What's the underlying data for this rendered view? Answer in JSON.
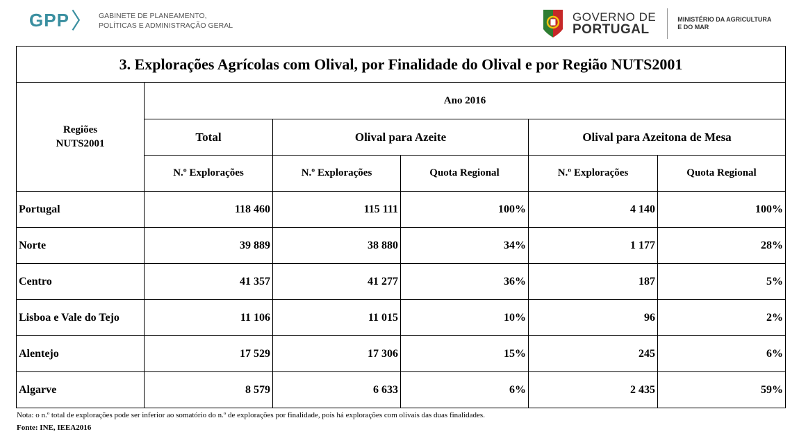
{
  "header": {
    "gpp_logo": "GPP",
    "gpp_line1": "GABINETE DE PLANEAMENTO,",
    "gpp_line2": "POLÍTICAS E ADMINISTRAÇÃO GERAL",
    "gov_line1": "GOVERNO DE",
    "gov_line2": "PORTUGAL",
    "ministry_line1": "MINISTÉRIO DA AGRICULTURA",
    "ministry_line2": "E DO MAR"
  },
  "table": {
    "title": "3. Explorações Agrícolas com Olival, por Finalidade do Olival e por Região NUTS2001",
    "region_header_line1": "Regiões",
    "region_header_line2": "NUTS2001",
    "year_header": "Ano 2016",
    "group_total": "Total",
    "group_azeite": "Olival para Azeite",
    "group_mesa": "Olival para Azeitona de Mesa",
    "sub_total_expl": "N.º Explorações",
    "sub_azeite_expl": "N.º Explorações",
    "sub_azeite_quota": "Quota Regional",
    "sub_mesa_expl": "N.º Explorações",
    "sub_mesa_quota": "Quota Regional",
    "rows": [
      {
        "region": "Portugal",
        "total": "118 460",
        "azeite_expl": "115 111",
        "azeite_quota": "100%",
        "mesa_expl": "4 140",
        "mesa_quota": "100%"
      },
      {
        "region": "Norte",
        "total": "39 889",
        "azeite_expl": "38 880",
        "azeite_quota": "34%",
        "mesa_expl": "1 177",
        "mesa_quota": "28%"
      },
      {
        "region": "Centro",
        "total": "41 357",
        "azeite_expl": "41 277",
        "azeite_quota": "36%",
        "mesa_expl": "187",
        "mesa_quota": "5%"
      },
      {
        "region": "Lisboa e Vale do Tejo",
        "total": "11 106",
        "azeite_expl": "11 015",
        "azeite_quota": "10%",
        "mesa_expl": "96",
        "mesa_quota": "2%"
      },
      {
        "region": "Alentejo",
        "total": "17 529",
        "azeite_expl": "17 306",
        "azeite_quota": "15%",
        "mesa_expl": "245",
        "mesa_quota": "6%"
      },
      {
        "region": "Algarve",
        "total": "8 579",
        "azeite_expl": "6 633",
        "azeite_quota": "6%",
        "mesa_expl": "2 435",
        "mesa_quota": "59%"
      }
    ]
  },
  "footer": {
    "note": "Nota: o n.º total de explorações pode ser inferior ao somatório do n.º de explorações por finalidade, pois há explorações com olivais das duas finalidades.",
    "source": "Fonte: INE, IEEA2016"
  },
  "colors": {
    "gpp_accent": "#3a8fa0",
    "flag_green": "#2e7d32",
    "flag_red": "#c62828",
    "flag_gold": "#f4c20d"
  },
  "icons": {
    "gov_emblem": "portugal-flag-emblem-icon"
  }
}
